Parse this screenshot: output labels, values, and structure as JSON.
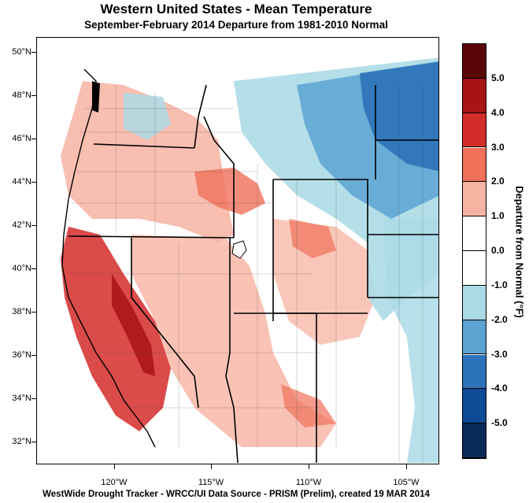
{
  "title": "Western United States - Mean Temperature",
  "subtitle": "September-February 2014  Departure from 1981-2010 Normal",
  "credit": "WestWide Drought Tracker - WRCC/UI  Data Source - PRISM (Prelim), created 19 MAR 2014",
  "legend": {
    "title": "Departure from Normal (°F)",
    "labels": [
      "5.0",
      "4.0",
      "3.0",
      "2.0",
      "1.0",
      "0.0",
      "-1.0",
      "-2.0",
      "-3.0",
      "-4.0",
      "-5.0"
    ],
    "colors": [
      "#5a0608",
      "#a81415",
      "#d42c2a",
      "#f0705a",
      "#f7b3a2",
      "#ffffff",
      "#ffffff",
      "#acdbe6",
      "#5ca3d2",
      "#2c72b8",
      "#0f4a95",
      "#0a2a58"
    ]
  },
  "lat_labels": [
    "50°N",
    "48°N",
    "46°N",
    "44°N",
    "42°N",
    "40°N",
    "38°N",
    "36°N",
    "34°N",
    "32°N"
  ],
  "lon_labels": [
    "120°W",
    "115°W",
    "110°W",
    "105°W"
  ],
  "colors": {
    "warm_light": "#f7b3a2",
    "warm_mid": "#f0705a",
    "warm_strong": "#d42c2a",
    "cool_light": "#acdbe6",
    "cool_mid": "#5ca3d2",
    "cool_strong": "#2c72b8"
  }
}
